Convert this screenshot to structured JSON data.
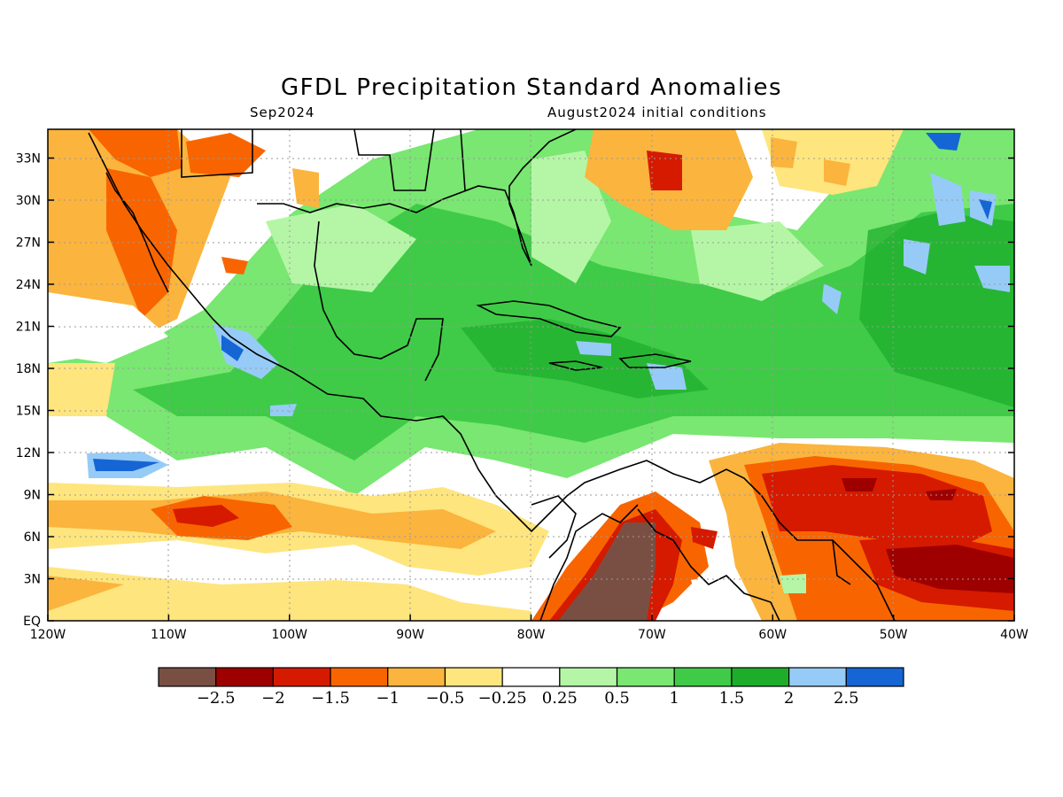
{
  "title": "GFDL Precipitation Standard Anomalies",
  "valid_month": "Sep2024",
  "initial_conditions": "August2024 initial conditions",
  "map": {
    "lon_labels": [
      "120W",
      "110W",
      "100W",
      "90W",
      "80W",
      "70W",
      "60W",
      "50W",
      "40W"
    ],
    "lat_labels": [
      "EQ",
      "3N",
      "6N",
      "9N",
      "12N",
      "15N",
      "18N",
      "21N",
      "24N",
      "27N",
      "30N",
      "33N"
    ]
  },
  "colorbar": {
    "colors": [
      "#7a4f43",
      "#9e0000",
      "#d51a00",
      "#f86500",
      "#fbb43d",
      "#fee57e",
      "#ffffff",
      "#b4f6a6",
      "#79e771",
      "#3fcb47",
      "#1ead2b",
      "#96cbf7",
      "#1565d5"
    ],
    "labels": [
      "-2.5",
      "-2",
      "-1.5",
      "-1",
      "-0.5",
      "-0.25",
      "0.25",
      "0.5",
      "1",
      "1.5",
      "2",
      "2.5"
    ]
  }
}
